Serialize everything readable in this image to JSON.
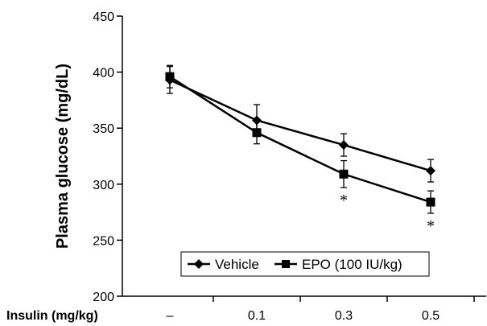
{
  "chart_data": {
    "type": "line",
    "ylabel": "Plasma glucose (mg/dL)",
    "xlabel": "Insulin (mg/kg)",
    "categories": [
      "–",
      "0.1",
      "0.3",
      "0.5"
    ],
    "ylim": [
      200,
      450
    ],
    "yticks": [
      "200",
      "250",
      "300",
      "350",
      "400",
      "450"
    ],
    "grid": false,
    "legend_position": "bottom-center, boxed",
    "series": [
      {
        "name": "Vehicle",
        "marker": "diamond",
        "values": [
          393,
          357,
          335,
          312
        ],
        "errors": [
          12,
          14,
          10,
          10
        ],
        "significance": [
          "",
          "",
          "",
          ""
        ]
      },
      {
        "name": "EPO (100 IU/kg)",
        "marker": "square",
        "values": [
          396,
          346,
          309,
          284
        ],
        "errors": [
          10,
          10,
          12,
          10
        ],
        "significance": [
          "",
          "",
          "*",
          "*"
        ]
      }
    ]
  }
}
